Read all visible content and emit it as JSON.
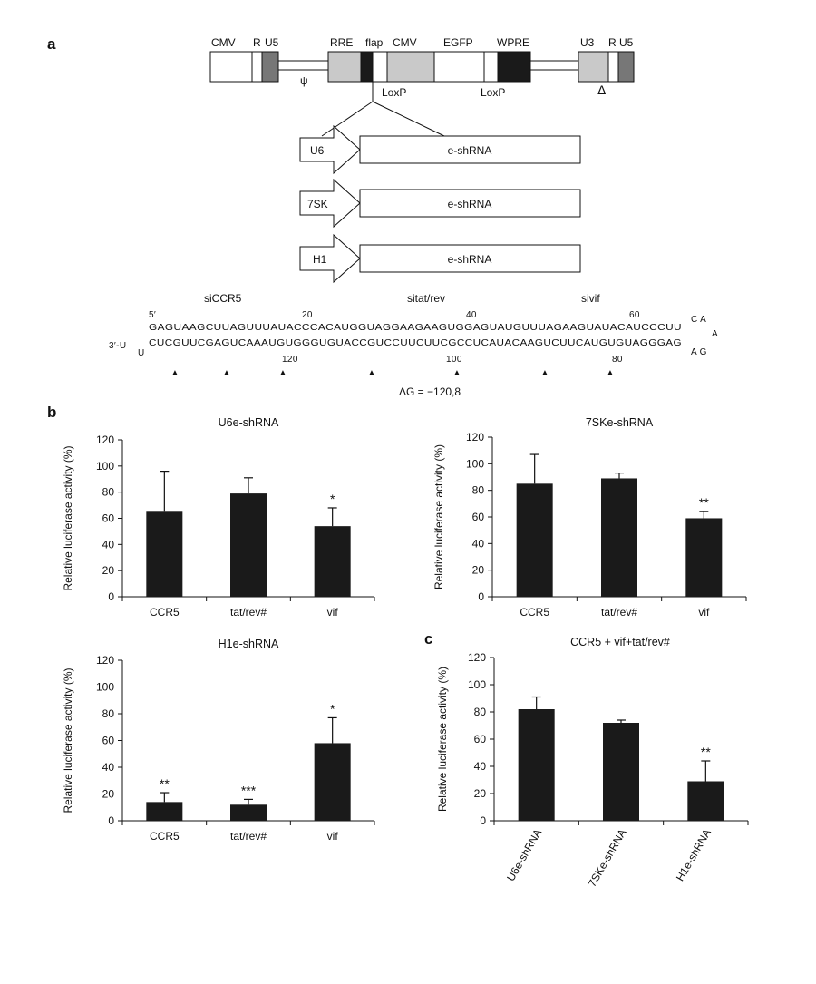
{
  "panels": {
    "a": "a",
    "b": "b",
    "c": "c"
  },
  "vector": {
    "labels": [
      "CMV",
      "R",
      "U5",
      "RRE",
      "flap",
      "CMV",
      "EGFP",
      "WPRE",
      "U3",
      "R",
      "U5"
    ],
    "psi": "ψ",
    "loxp": [
      "LoxP",
      "LoxP"
    ],
    "delta": "Δ",
    "colors": {
      "light": "#ffffff",
      "mid": "#c9c9c9",
      "dark": "#777777",
      "black": "#1a1a1a"
    }
  },
  "constructs": [
    {
      "promoter": "U6",
      "insert": "e-shRNA"
    },
    {
      "promoter": "7SK",
      "insert": "e-shRNA"
    },
    {
      "promoter": "H1",
      "insert": "e-shRNA"
    }
  ],
  "hairpin": {
    "target_labels": [
      "siCCR5",
      "sitat/rev",
      "sivif"
    ],
    "five_prime": "5′",
    "top_numbers": [
      "20",
      "40",
      "60"
    ],
    "top_strand": "GAGUAAGCUUAGUUUAUACCCACAUGGUAGGAAGAAGUGGAGUAUGUUUAGAAGUAUACAUCCCUU",
    "loop_top": "C A",
    "loop_right": "A",
    "loop_bottom": "A G",
    "three_prime": "3′-U",
    "three_prime_u": "U",
    "bottom_strand": "CUCGUUCGAGUCAAAUGUGGGUGUACCGUCCUUCUUCGCCUCAUACAAGUCUUCAUGUGUAGGGAG",
    "bottom_numbers": [
      "120",
      "100",
      "80"
    ],
    "marker": "▲",
    "delta_g": "ΔG = −120,8"
  },
  "chart_data": [
    {
      "type": "bar",
      "title": "U6e-shRNA",
      "categories": [
        "CCR5",
        "tat/rev#",
        "vif"
      ],
      "values": [
        65,
        79,
        54
      ],
      "errors": [
        31,
        12,
        14
      ],
      "significance": [
        "",
        "",
        "*"
      ],
      "ylabel": "Relative luciferase activity (%)",
      "ylim": [
        0,
        120
      ],
      "yticks": [
        "0",
        "20",
        "40",
        "60",
        "80",
        "100",
        "120"
      ],
      "grid": false
    },
    {
      "type": "bar",
      "title": "7SKe-shRNA",
      "categories": [
        "CCR5",
        "tat/rev#",
        "vif"
      ],
      "values": [
        85,
        89,
        59
      ],
      "errors": [
        22,
        4,
        5
      ],
      "significance": [
        "",
        "",
        "**"
      ],
      "ylabel": "Relative luciferase activity (%)",
      "ylim": [
        0,
        120
      ],
      "yticks": [
        "0",
        "20",
        "40",
        "60",
        "80",
        "100",
        "120"
      ],
      "grid": false
    },
    {
      "type": "bar",
      "title": "H1e-shRNA",
      "categories": [
        "CCR5",
        "tat/rev#",
        "vif"
      ],
      "values": [
        14,
        12,
        58
      ],
      "errors": [
        7,
        4,
        19
      ],
      "significance": [
        "**",
        "***",
        "*"
      ],
      "ylabel": "Relative luciferase activity (%)",
      "ylim": [
        0,
        120
      ],
      "yticks": [
        "0",
        "20",
        "40",
        "60",
        "80",
        "100",
        "120"
      ],
      "grid": false
    },
    {
      "type": "bar",
      "title": "CCR5 + vif+tat/rev#",
      "categories": [
        "U6e-shRNA",
        "7SKe-shRNA",
        "H1e-shRNA"
      ],
      "values": [
        82,
        72,
        29
      ],
      "errors": [
        9,
        2,
        15
      ],
      "significance": [
        "",
        "",
        "**"
      ],
      "ylabel": "Relative luciferase activity (%)",
      "ylim": [
        0,
        120
      ],
      "yticks": [
        "0",
        "20",
        "40",
        "60",
        "80",
        "100",
        "120"
      ],
      "grid": false,
      "rotated_labels": true
    }
  ]
}
